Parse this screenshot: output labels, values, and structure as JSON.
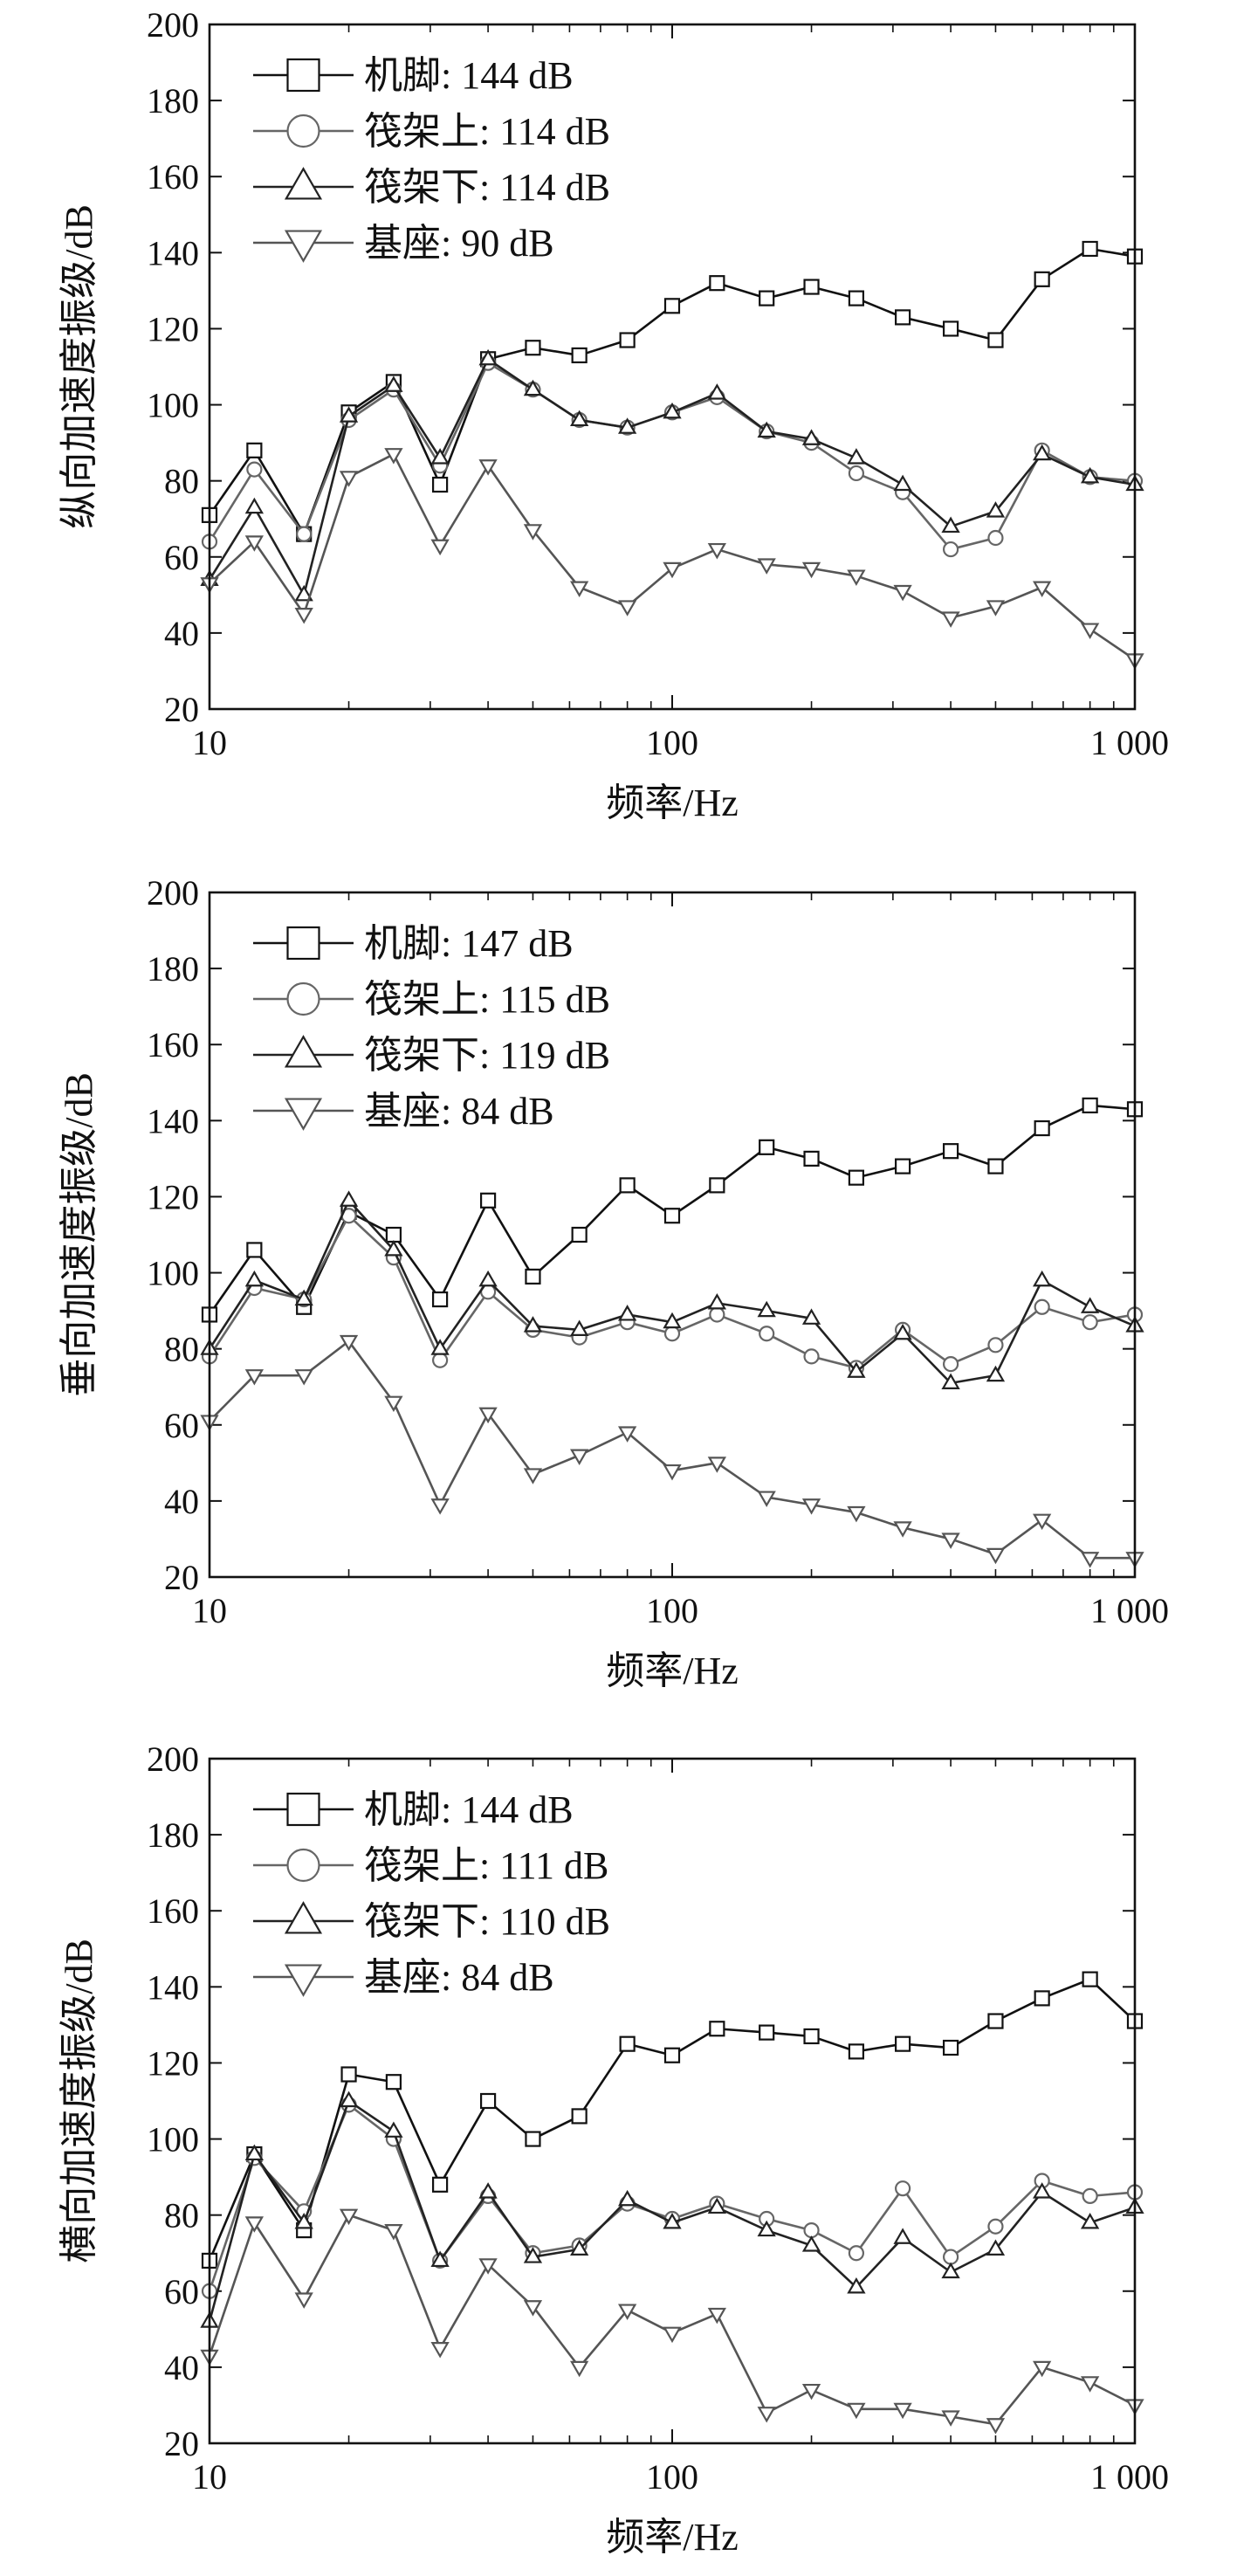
{
  "chart_data": [
    {
      "type": "line",
      "xscale": "log",
      "xlim": [
        10,
        1000
      ],
      "ylim": [
        20,
        200
      ],
      "xticks": [
        "10",
        "100",
        "1 000"
      ],
      "yticks": [
        "20",
        "40",
        "60",
        "80",
        "100",
        "120",
        "140",
        "160",
        "180",
        "200"
      ],
      "xlabel": "频率/Hz",
      "ylabel": "纵向加速度振级/dB",
      "legend_position": "top-left",
      "x": [
        10,
        12.5,
        16,
        20,
        25,
        31.5,
        40,
        50,
        63,
        80,
        100,
        125,
        160,
        200,
        250,
        315,
        400,
        500,
        630,
        800,
        1000
      ],
      "series": [
        {
          "name": "机脚: 144 dB",
          "marker": "square",
          "color": "#111111",
          "values": [
            71,
            88,
            66,
            98,
            106,
            79,
            112,
            115,
            113,
            117,
            126,
            132,
            128,
            131,
            128,
            123,
            120,
            117,
            133,
            141,
            139
          ]
        },
        {
          "name": "筏架上: 114 dB",
          "marker": "circle",
          "color": "#666666",
          "values": [
            64,
            83,
            66,
            96,
            104,
            84,
            111,
            104,
            96,
            94,
            98,
            102,
            93,
            90,
            82,
            77,
            62,
            65,
            88,
            81,
            80
          ]
        },
        {
          "name": "筏架下: 114 dB",
          "marker": "triangle-up",
          "color": "#222222",
          "values": [
            54,
            73,
            50,
            97,
            105,
            86,
            112,
            104,
            96,
            94,
            98,
            103,
            93,
            91,
            86,
            79,
            68,
            72,
            87,
            81,
            79
          ]
        },
        {
          "name": "基座: 90 dB",
          "marker": "triangle-down",
          "color": "#555555",
          "values": [
            53,
            64,
            45,
            81,
            87,
            63,
            84,
            67,
            52,
            47,
            57,
            62,
            58,
            57,
            55,
            51,
            44,
            47,
            52,
            41,
            33
          ]
        }
      ]
    },
    {
      "type": "line",
      "xscale": "log",
      "xlim": [
        10,
        1000
      ],
      "ylim": [
        20,
        200
      ],
      "xticks": [
        "10",
        "100",
        "1 000"
      ],
      "yticks": [
        "20",
        "40",
        "60",
        "80",
        "100",
        "120",
        "140",
        "160",
        "180",
        "200"
      ],
      "xlabel": "频率/Hz",
      "ylabel": "垂向加速度振级/dB",
      "legend_position": "top-left",
      "x": [
        10,
        12.5,
        16,
        20,
        25,
        31.5,
        40,
        50,
        63,
        80,
        100,
        125,
        160,
        200,
        250,
        315,
        400,
        500,
        630,
        800,
        1000
      ],
      "series": [
        {
          "name": "机脚: 147 dB",
          "marker": "square",
          "color": "#111111",
          "values": [
            89,
            106,
            91,
            116,
            110,
            93,
            119,
            99,
            110,
            123,
            115,
            123,
            133,
            130,
            125,
            128,
            132,
            128,
            138,
            144,
            143
          ]
        },
        {
          "name": "筏架上: 115 dB",
          "marker": "circle",
          "color": "#666666",
          "values": [
            78,
            96,
            93,
            115,
            104,
            77,
            95,
            85,
            83,
            87,
            84,
            89,
            84,
            78,
            75,
            85,
            76,
            81,
            91,
            87,
            89
          ]
        },
        {
          "name": "筏架下: 119 dB",
          "marker": "triangle-up",
          "color": "#222222",
          "values": [
            80,
            98,
            93,
            119,
            106,
            80,
            98,
            86,
            85,
            89,
            87,
            92,
            90,
            88,
            74,
            84,
            71,
            73,
            98,
            91,
            86
          ]
        },
        {
          "name": "基座: 84 dB",
          "marker": "triangle-down",
          "color": "#555555",
          "values": [
            61,
            73,
            73,
            82,
            66,
            39,
            63,
            47,
            52,
            58,
            48,
            50,
            41,
            39,
            37,
            33,
            30,
            26,
            35,
            25,
            25
          ]
        }
      ]
    },
    {
      "type": "line",
      "xscale": "log",
      "xlim": [
        10,
        1000
      ],
      "ylim": [
        20,
        200
      ],
      "xticks": [
        "10",
        "100",
        "1 000"
      ],
      "yticks": [
        "20",
        "40",
        "60",
        "80",
        "100",
        "120",
        "140",
        "160",
        "180",
        "200"
      ],
      "xlabel": "频率/Hz",
      "ylabel": "横向加速度振级/dB",
      "legend_position": "top-left",
      "x": [
        10,
        12.5,
        16,
        20,
        25,
        31.5,
        40,
        50,
        63,
        80,
        100,
        125,
        160,
        200,
        250,
        315,
        400,
        500,
        630,
        800,
        1000
      ],
      "series": [
        {
          "name": "机脚: 144 dB",
          "marker": "square",
          "color": "#111111",
          "values": [
            68,
            96,
            76,
            117,
            115,
            88,
            110,
            100,
            106,
            125,
            122,
            129,
            128,
            127,
            123,
            125,
            124,
            131,
            137,
            142,
            131
          ]
        },
        {
          "name": "筏架上: 111 dB",
          "marker": "circle",
          "color": "#666666",
          "values": [
            60,
            95,
            81,
            109,
            100,
            68,
            85,
            70,
            72,
            83,
            79,
            83,
            79,
            76,
            70,
            87,
            69,
            77,
            89,
            85,
            86
          ]
        },
        {
          "name": "筏架下: 110 dB",
          "marker": "triangle-up",
          "color": "#222222",
          "values": [
            52,
            96,
            78,
            110,
            102,
            68,
            86,
            69,
            71,
            84,
            78,
            82,
            76,
            72,
            61,
            74,
            65,
            71,
            86,
            78,
            82
          ]
        },
        {
          "name": "基座: 84 dB",
          "marker": "triangle-down",
          "color": "#555555",
          "values": [
            43,
            78,
            58,
            80,
            76,
            45,
            67,
            56,
            40,
            55,
            49,
            54,
            28,
            34,
            29,
            29,
            27,
            25,
            40,
            36,
            30
          ]
        }
      ]
    }
  ]
}
